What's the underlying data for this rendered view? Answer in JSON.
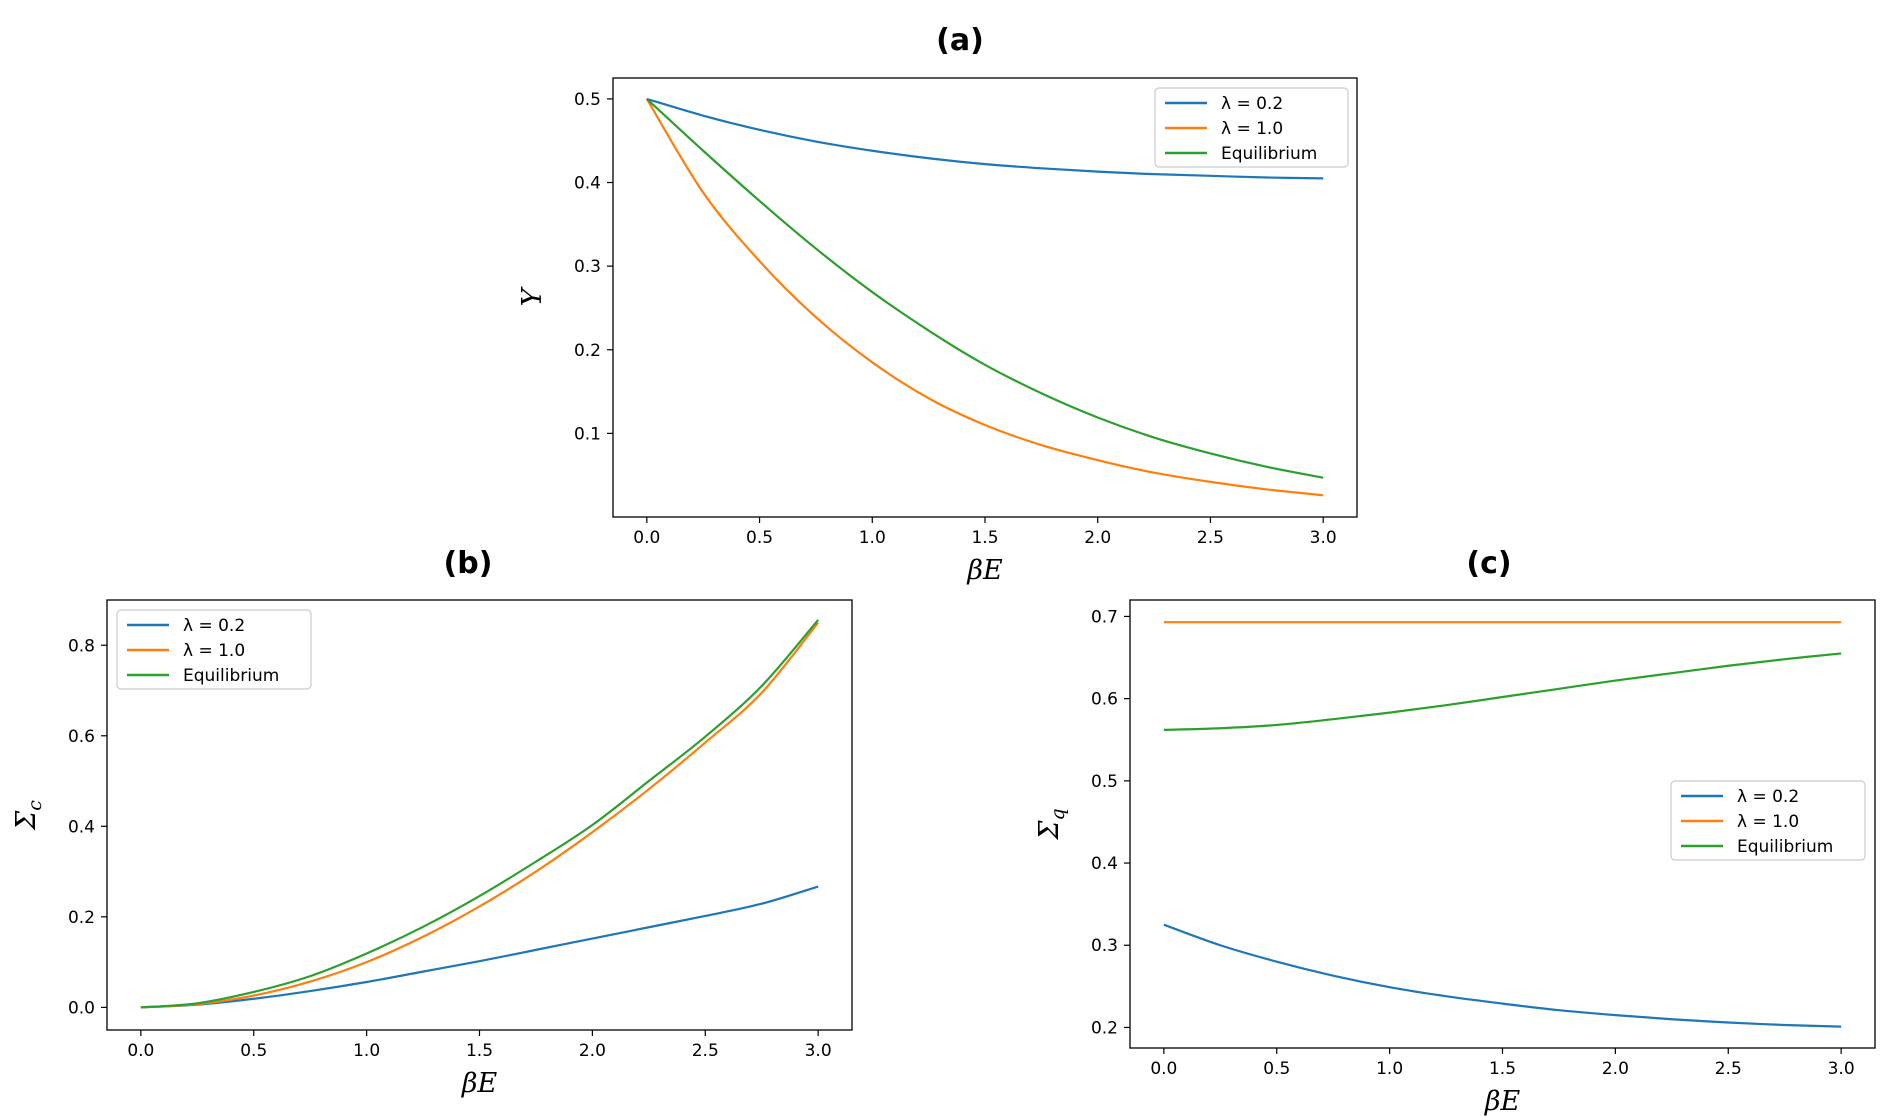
{
  "colors": {
    "blue": "#1f77b4",
    "orange": "#ff7f0e",
    "green": "#2ca02c"
  },
  "legend": {
    "entries": [
      {
        "label": "λ = 0.2",
        "color": "#1f77b4"
      },
      {
        "label": "λ = 1.0",
        "color": "#ff7f0e"
      },
      {
        "label": "Equilibrium",
        "color": "#2ca02c"
      }
    ]
  },
  "chart_data": [
    {
      "id": "a",
      "title": "(a)",
      "type": "line",
      "xlabel": "βE",
      "ylabel": "Y",
      "xlim": [
        -0.15,
        3.15
      ],
      "ylim": [
        0.0,
        0.525
      ],
      "xticks": [
        "0.0",
        "0.5",
        "1.0",
        "1.5",
        "2.0",
        "2.5",
        "3.0"
      ],
      "yticks": [
        "0.1",
        "0.2",
        "0.3",
        "0.4",
        "0.5"
      ],
      "legend_position": "upper-right",
      "series": [
        {
          "name": "λ = 0.2",
          "color": "#1f77b4",
          "x": [
            0.0,
            0.25,
            0.5,
            0.75,
            1.0,
            1.25,
            1.5,
            1.75,
            2.0,
            2.25,
            2.5,
            2.75,
            3.0
          ],
          "values": [
            0.5,
            0.48,
            0.463,
            0.449,
            0.438,
            0.429,
            0.422,
            0.417,
            0.413,
            0.41,
            0.408,
            0.406,
            0.405
          ]
        },
        {
          "name": "λ = 1.0",
          "color": "#ff7f0e",
          "x": [
            0.0,
            0.25,
            0.5,
            0.75,
            1.0,
            1.25,
            1.5,
            1.75,
            2.0,
            2.25,
            2.5,
            2.75,
            3.0
          ],
          "values": [
            0.5,
            0.388,
            0.306,
            0.239,
            0.185,
            0.142,
            0.11,
            0.086,
            0.068,
            0.053,
            0.042,
            0.033,
            0.026
          ]
        },
        {
          "name": "Equilibrium",
          "color": "#2ca02c",
          "x": [
            0.0,
            0.25,
            0.5,
            0.75,
            1.0,
            1.25,
            1.5,
            1.75,
            2.0,
            2.25,
            2.5,
            2.75,
            3.0
          ],
          "values": [
            0.5,
            0.438,
            0.378,
            0.321,
            0.269,
            0.223,
            0.182,
            0.148,
            0.119,
            0.095,
            0.076,
            0.06,
            0.047
          ]
        }
      ]
    },
    {
      "id": "b",
      "title": "(b)",
      "type": "line",
      "xlabel": "βE",
      "ylabel": "Σc",
      "xlim": [
        -0.15,
        3.15
      ],
      "ylim": [
        -0.05,
        0.9
      ],
      "xticks": [
        "0.0",
        "0.5",
        "1.0",
        "1.5",
        "2.0",
        "2.5",
        "3.0"
      ],
      "yticks": [
        "0.0",
        "0.2",
        "0.4",
        "0.6",
        "0.8"
      ],
      "legend_position": "upper-left",
      "series": [
        {
          "name": "λ = 0.2",
          "color": "#1f77b4",
          "x": [
            0.0,
            0.25,
            0.5,
            0.75,
            1.0,
            1.25,
            1.5,
            1.75,
            2.0,
            2.25,
            2.5,
            2.75,
            3.0
          ],
          "values": [
            0.0,
            0.006,
            0.019,
            0.036,
            0.056,
            0.079,
            0.102,
            0.127,
            0.152,
            0.177,
            0.202,
            0.229,
            0.267
          ]
        },
        {
          "name": "λ = 1.0",
          "color": "#ff7f0e",
          "x": [
            0.0,
            0.25,
            0.5,
            0.75,
            1.0,
            1.25,
            1.5,
            1.75,
            2.0,
            2.25,
            2.5,
            2.75,
            3.0
          ],
          "values": [
            0.0,
            0.007,
            0.026,
            0.057,
            0.1,
            0.156,
            0.223,
            0.3,
            0.387,
            0.482,
            0.585,
            0.695,
            0.85
          ]
        },
        {
          "name": "Equilibrium",
          "color": "#2ca02c",
          "x": [
            0.0,
            0.25,
            0.5,
            0.75,
            1.0,
            1.25,
            1.5,
            1.75,
            2.0,
            2.25,
            2.5,
            2.75,
            3.0
          ],
          "values": [
            0.0,
            0.009,
            0.034,
            0.069,
            0.119,
            0.178,
            0.246,
            0.322,
            0.403,
            0.5,
            0.598,
            0.71,
            0.856
          ]
        }
      ]
    },
    {
      "id": "c",
      "title": "(c)",
      "type": "line",
      "xlabel": "βE",
      "ylabel": "Σq",
      "xlim": [
        -0.15,
        3.15
      ],
      "ylim": [
        0.175,
        0.72
      ],
      "xticks": [
        "0.0",
        "0.5",
        "1.0",
        "1.5",
        "2.0",
        "2.5",
        "3.0"
      ],
      "yticks": [
        "0.2",
        "0.3",
        "0.4",
        "0.5",
        "0.6",
        "0.7"
      ],
      "legend_position": "center-right",
      "series": [
        {
          "name": "λ = 0.2",
          "color": "#1f77b4",
          "x": [
            0.0,
            0.25,
            0.5,
            0.75,
            1.0,
            1.25,
            1.5,
            1.75,
            2.0,
            2.25,
            2.5,
            2.75,
            3.0
          ],
          "values": [
            0.325,
            0.3,
            0.28,
            0.263,
            0.249,
            0.238,
            0.229,
            0.221,
            0.215,
            0.21,
            0.206,
            0.203,
            0.201
          ]
        },
        {
          "name": "λ = 1.0",
          "color": "#ff7f0e",
          "x": [
            0.0,
            3.0
          ],
          "values": [
            0.693,
            0.693
          ]
        },
        {
          "name": "Equilibrium",
          "color": "#2ca02c",
          "x": [
            0.0,
            0.25,
            0.5,
            0.75,
            1.0,
            1.25,
            1.5,
            1.75,
            2.0,
            2.25,
            2.5,
            2.75,
            3.0
          ],
          "values": [
            0.562,
            0.564,
            0.568,
            0.575,
            0.583,
            0.592,
            0.602,
            0.612,
            0.622,
            0.631,
            0.64,
            0.648,
            0.655
          ]
        }
      ]
    }
  ]
}
